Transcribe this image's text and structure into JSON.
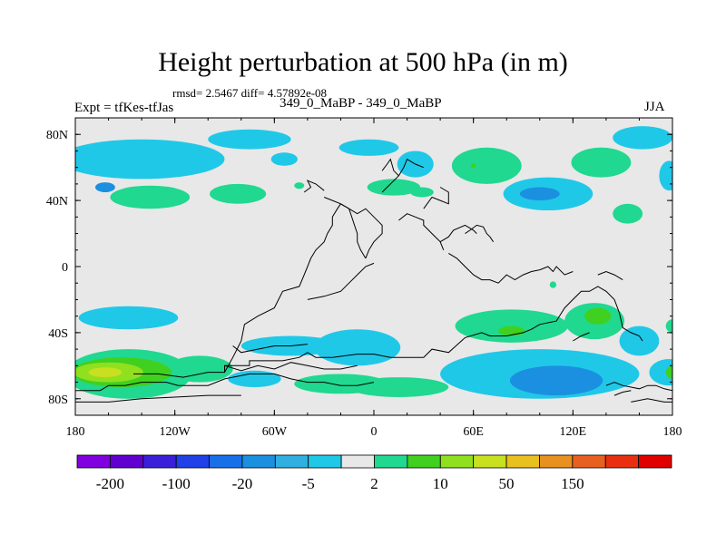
{
  "chart_data": {
    "type": "contour_map",
    "title": "Height perturbation at 500 hPa (in m)",
    "stats_label": "rmsd= 2.5467 diff= 4.57892e-08",
    "subtitle": "349_0_MaBP - 349_0_MaBP",
    "left_label": "Expt = tfKes-tfJas",
    "right_label": "JJA",
    "x_range": [
      -180,
      180
    ],
    "y_range": [
      -90,
      90
    ],
    "x_ticks": [
      {
        "value": -180,
        "label": "180"
      },
      {
        "value": -120,
        "label": "120W"
      },
      {
        "value": -60,
        "label": "60W"
      },
      {
        "value": 0,
        "label": "0"
      },
      {
        "value": 60,
        "label": "60E"
      },
      {
        "value": 120,
        "label": "120E"
      },
      {
        "value": 180,
        "label": "180"
      }
    ],
    "y_ticks": [
      {
        "value": 80,
        "label": "80N"
      },
      {
        "value": 40,
        "label": "40N"
      },
      {
        "value": 0,
        "label": "0"
      },
      {
        "value": -40,
        "label": "40S"
      },
      {
        "value": -80,
        "label": "80S"
      }
    ],
    "colorbar": {
      "colors": [
        "#8000e0",
        "#6000d0",
        "#3a20d8",
        "#2040e8",
        "#1870e8",
        "#1c90e0",
        "#30b0e0",
        "#20c8e8",
        "#e8e8e8",
        "#20d890",
        "#40d020",
        "#90e020",
        "#c8e020",
        "#e8c020",
        "#e89020",
        "#e86020",
        "#e83010",
        "#e00000"
      ],
      "labels": [
        {
          "boundary": 1,
          "label": "-200"
        },
        {
          "boundary": 3,
          "label": "-100"
        },
        {
          "boundary": 5,
          "label": "-20"
        },
        {
          "boundary": 7,
          "label": "-5"
        },
        {
          "boundary": 9,
          "label": "2"
        },
        {
          "boundary": 11,
          "label": "10"
        },
        {
          "boundary": 13,
          "label": "50"
        },
        {
          "boundary": 15,
          "label": "150"
        }
      ]
    },
    "regions": [
      {
        "color": "#20c8e8",
        "lon": -140,
        "lat": 65,
        "rx": 50,
        "ry": 12
      },
      {
        "color": "#20c8e8",
        "lon": -75,
        "lat": 77,
        "rx": 25,
        "ry": 6
      },
      {
        "color": "#20c8e8",
        "lon": -54,
        "lat": 65,
        "rx": 8,
        "ry": 4
      },
      {
        "color": "#20c8e8",
        "lon": -3,
        "lat": 72,
        "rx": 18,
        "ry": 5
      },
      {
        "color": "#20c8e8",
        "lon": 25,
        "lat": 62,
        "rx": 11,
        "ry": 8
      },
      {
        "color": "#20c8e8",
        "lon": 105,
        "lat": 44,
        "rx": 27,
        "ry": 10
      },
      {
        "color": "#20c8e8",
        "lon": 162,
        "lat": 78,
        "rx": 18,
        "ry": 7
      },
      {
        "color": "#20c8e8",
        "lon": 178,
        "lat": 55,
        "rx": 6,
        "ry": 9
      },
      {
        "color": "#20c8e8",
        "lon": -148,
        "lat": -31,
        "rx": 30,
        "ry": 7
      },
      {
        "color": "#20c8e8",
        "lon": -50,
        "lat": -48,
        "rx": 30,
        "ry": 6
      },
      {
        "color": "#20c8e8",
        "lon": -10,
        "lat": -49,
        "rx": 26,
        "ry": 11
      },
      {
        "color": "#20c8e8",
        "lon": -72,
        "lat": -68,
        "rx": 16,
        "ry": 5
      },
      {
        "color": "#20c8e8",
        "lon": 100,
        "lat": -65,
        "rx": 60,
        "ry": 15
      },
      {
        "color": "#20c8e8",
        "lon": 160,
        "lat": -45,
        "rx": 12,
        "ry": 9
      },
      {
        "color": "#20c8e8",
        "lon": 178,
        "lat": -64,
        "rx": 12,
        "ry": 8
      },
      {
        "color": "#1c90e0",
        "lon": 110,
        "lat": -69,
        "rx": 28,
        "ry": 9
      },
      {
        "color": "#1c90e0",
        "lon": 100,
        "lat": 44,
        "rx": 12,
        "ry": 4
      },
      {
        "color": "#1c90e0",
        "lon": -162,
        "lat": 48,
        "rx": 6,
        "ry": 3
      },
      {
        "color": "#20d890",
        "lon": -135,
        "lat": 42,
        "rx": 24,
        "ry": 7
      },
      {
        "color": "#20d890",
        "lon": -82,
        "lat": 44,
        "rx": 17,
        "ry": 6
      },
      {
        "color": "#20d890",
        "lon": -45,
        "lat": 49,
        "rx": 3,
        "ry": 2
      },
      {
        "color": "#20d890",
        "lon": 12,
        "lat": 48,
        "rx": 16,
        "ry": 5
      },
      {
        "color": "#20d890",
        "lon": 29,
        "lat": 45,
        "rx": 7,
        "ry": 3
      },
      {
        "color": "#20d890",
        "lon": 68,
        "lat": 61,
        "rx": 21,
        "ry": 11
      },
      {
        "color": "#20d890",
        "lon": 137,
        "lat": 63,
        "rx": 18,
        "ry": 9
      },
      {
        "color": "#20d890",
        "lon": 153,
        "lat": 32,
        "rx": 9,
        "ry": 6
      },
      {
        "color": "#20d890",
        "lon": 108,
        "lat": -11,
        "rx": 2,
        "ry": 2
      },
      {
        "color": "#20d890",
        "lon": 83,
        "lat": -36,
        "rx": 34,
        "ry": 10
      },
      {
        "color": "#20d890",
        "lon": 133,
        "lat": -33,
        "rx": 18,
        "ry": 11
      },
      {
        "color": "#20d890",
        "lon": 180,
        "lat": -36,
        "rx": 4,
        "ry": 4
      },
      {
        "color": "#20d890",
        "lon": -148,
        "lat": -65,
        "rx": 38,
        "ry": 15
      },
      {
        "color": "#20d890",
        "lon": -105,
        "lat": -62,
        "rx": 20,
        "ry": 8
      },
      {
        "color": "#20d890",
        "lon": -20,
        "lat": -71,
        "rx": 28,
        "ry": 6
      },
      {
        "color": "#20d890",
        "lon": 15,
        "lat": -73,
        "rx": 30,
        "ry": 6
      },
      {
        "color": "#40d020",
        "lon": -152,
        "lat": -64,
        "rx": 30,
        "ry": 9
      },
      {
        "color": "#40d020",
        "lon": 60,
        "lat": 61,
        "rx": 1.5,
        "ry": 1.5
      },
      {
        "color": "#40d020",
        "lon": 83,
        "lat": -39,
        "rx": 8,
        "ry": 3
      },
      {
        "color": "#40d020",
        "lon": 135,
        "lat": -30,
        "rx": 8,
        "ry": 5
      },
      {
        "color": "#40d020",
        "lon": 180,
        "lat": -64,
        "rx": 4,
        "ry": 4
      },
      {
        "color": "#90e020",
        "lon": -160,
        "lat": -64,
        "rx": 21,
        "ry": 6
      },
      {
        "color": "#c8e020",
        "lon": -162,
        "lat": -64,
        "rx": 10,
        "ry": 3
      }
    ],
    "coastlines": [
      "-145,-65 -130,-65 -115,-67 -100,-64 -90,-64 -90,-60 -75,-60 -75,-57 -55,-57 -45,-55 -40,-52 -35,-55 -25,-55 -10,-53 0,-53 10,-55 30,-55 35,-50 45,-52 55,-43 65,-40 70,-42 80,-42 90,-40 95,-38 100,-35 110,-33 115,-25 120,-20 125,-15 130,-15 135,-12 140,-15 145,-20 148,-28 150,-37 155,-40 160,-42 162,-45",
      "-180,-75 -165,-75 -160,-72 -150,-72 -140,-70 -125,-70 -118,-72 -100,-72 -90,-68 -75,-65 -60,-65 -50,-68 -40,-70 -30,-70 -20,-72 -10,-72 0,-70",
      "-90,-60 -80,-63 -70,-60 -60,-62 -50,-58 -40,-60 -30,-62 -20,-62 -10,-60",
      "-180,-82 -160,-82 -140,-80 -120,-79 -100,-78 -80,-78",
      "-90,-64 -85,-55 -80,-45 -78,-35 -70,-30 -60,-25 -55,-15 -45,-12 -42,-5 -40,0 -38,5 -35,10 -30,15 -28,20 -25,25 -25,30 -22,35 -20,38",
      "-40,-20 -30,-18 -20,-15 -15,-10 -10,-5 -5,0 0,2",
      "-5,5 -3,10 0,15 5,20 5,25 0,30 -5,35 -10,32 -15,35 -20,38",
      "-85,-48 -80,-52 -70,-50 -60,-48 -50,-48 -40,-47",
      "-30,42 -25,40 -20,38 -15,35 -10,20 -10,15 -8,10 -5,5",
      "-42,45 -38,48 -40,52 -35,50 -30,46",
      "15,28 20,32 25,30 30,28 30,25 35,20 40,15 42,10",
      "40,15 45,18 48,22 55,25 60,22 62,20",
      "30,35 35,42 40,40 45,38 45,45 40,48",
      "5,45 10,50 15,55 18,60 20,65 25,62 30,60",
      "5,58 8,62 10,65 12,58 15,55",
      "45,8 50,5 55,0 60,-5 65,-8 70,-8 75,-10 80,-5 85,-8 90,-5 95,-3 100,-2",
      "100,-2 105,0 108,-3 110,0 115,-5 120,-3",
      "135,-5 140,-3 145,-5 150,-8",
      "55,20 58,22 62,25 66,24 68,20 70,18 72,15",
      "120,-45 125,-42 130,-40",
      "140,-72 145,-70 150,-72 155,-73 160,-74 165,-72 170,-72 175,-74 180,-75",
      "155,-82 165,-80 175,-82 180,-82",
      "145,-78 150,-76 155,-75"
    ]
  }
}
